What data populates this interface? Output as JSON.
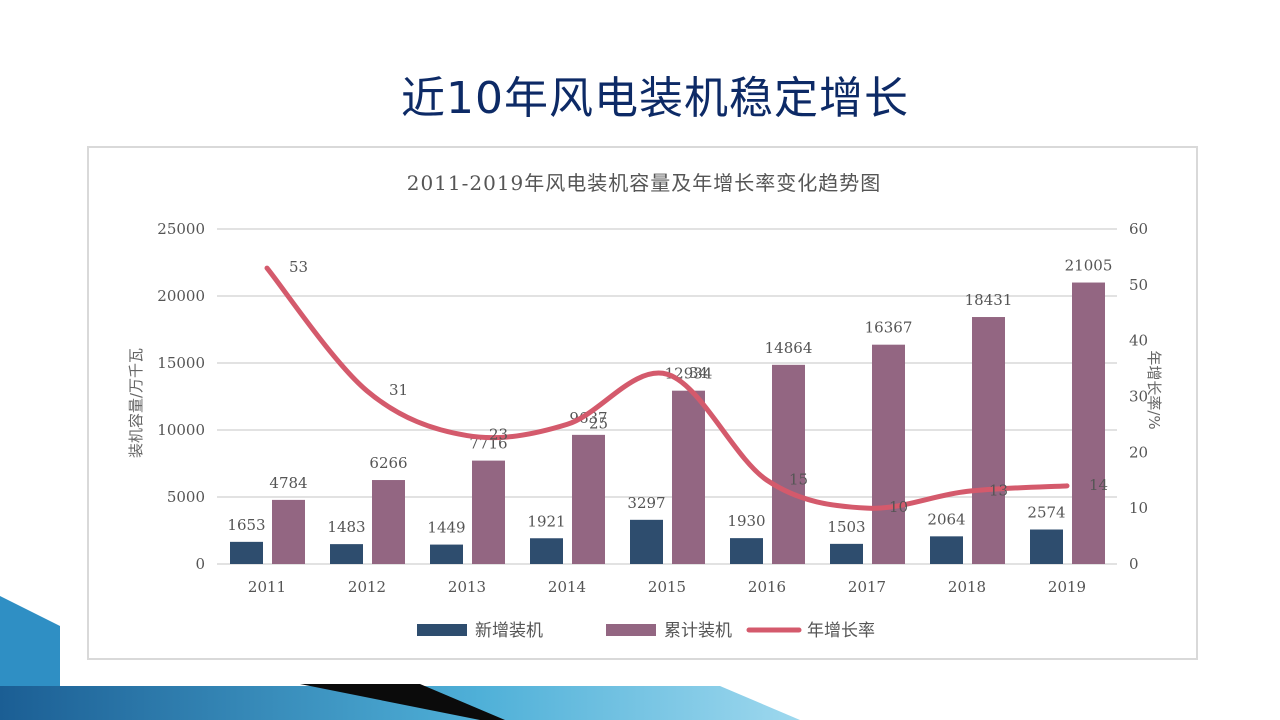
{
  "slide": {
    "title": "近10年风电装机稳定增长"
  },
  "colors": {
    "new_bar": "#2e4d6e",
    "cum_bar": "#936682",
    "rate_line": "#d45a6c",
    "title": "#0d2a66",
    "grid": "#d9d9d9",
    "deco_blue": "#2f8fc4",
    "deco_dark": "#0b0b0b"
  },
  "chart_data": {
    "type": "bar+line",
    "title": "2011-2019年风电装机容量及年增长率变化趋势图",
    "categories": [
      "2011",
      "2012",
      "2013",
      "2014",
      "2015",
      "2016",
      "2017",
      "2018",
      "2019"
    ],
    "series": [
      {
        "name": "新增装机",
        "type": "bar",
        "axis": "left",
        "values": [
          1653,
          1483,
          1449,
          1921,
          3297,
          1930,
          1503,
          2064,
          2574
        ]
      },
      {
        "name": "累计装机",
        "type": "bar",
        "axis": "left",
        "values": [
          4784,
          6266,
          7716,
          9637,
          12934,
          14864,
          16367,
          18431,
          21005
        ]
      },
      {
        "name": "年增长率",
        "type": "line",
        "axis": "right",
        "values": [
          53,
          31,
          23,
          25,
          34,
          15,
          10,
          13,
          14
        ]
      }
    ],
    "ylabel": "装机容量/万千瓦",
    "y2label": "年增长率/%",
    "ylim": [
      0,
      25000
    ],
    "y2lim": [
      0,
      60
    ],
    "yticks": [
      "0",
      "5000",
      "10000",
      "15000",
      "20000",
      "25000"
    ],
    "y2ticks": [
      "0",
      "10",
      "20",
      "30",
      "40",
      "50",
      "60"
    ],
    "grid": true,
    "legend": "bottom-center"
  }
}
